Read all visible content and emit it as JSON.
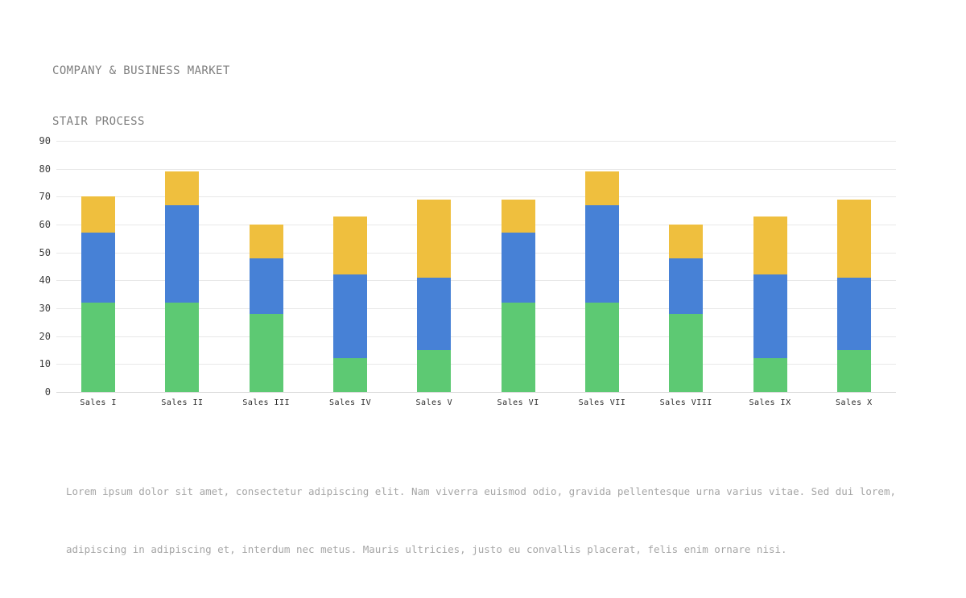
{
  "header": {
    "title_line1": "COMPANY & BUSINESS MARKET",
    "title_line2": "STAIR PROCESS"
  },
  "footer": {
    "description_line1": "Lorem ipsum dolor sit amet, consectetur adipiscing elit. Nam viverra euismod odio, gravida pellentesque urna varius vitae. Sed dui lorem,",
    "description_line2": "adipiscing in adipiscing et, interdum nec metus. Mauris ultricies, justo eu convallis placerat, felis enim ornare nisi."
  },
  "colors": {
    "background": "#ffffff",
    "series-green": "#5dc973",
    "series-blue": "#4781d6",
    "series-yellow": "#efbf3e",
    "grid": "#e8e8e8",
    "zero-line": "#d9d9d9",
    "title-text": "#7e7e7e",
    "axis-text": "#3d3d3d",
    "category-text": "#2a2a2a",
    "description-text": "#a6a6a6"
  },
  "chart_data": {
    "type": "bar",
    "stacked": true,
    "title": "",
    "categories": [
      "Sales I",
      "Sales II",
      "Sales III",
      "Sales IV",
      "Sales V",
      "Sales VI",
      "Sales VII",
      "Sales VIII",
      "Sales IX",
      "Sales X"
    ],
    "series": [
      {
        "name": "bottom-green-segment",
        "color": "#5dc973",
        "values": [
          32,
          32,
          28,
          12,
          15,
          32,
          32,
          28,
          12,
          15
        ]
      },
      {
        "name": "middle-blue-segment",
        "color": "#4781d6",
        "values": [
          25,
          35,
          20,
          30,
          26,
          25,
          35,
          20,
          30,
          26
        ]
      },
      {
        "name": "top-yellow-segment",
        "color": "#efbf3e",
        "values": [
          13,
          12,
          12,
          21,
          28,
          12,
          12,
          12,
          21,
          28
        ]
      }
    ],
    "stack_totals": [
      70,
      79,
      60,
      63,
      69,
      69,
      79,
      60,
      63,
      69
    ],
    "ylim": [
      0,
      90
    ],
    "y_ticks": [
      0,
      10,
      20,
      30,
      40,
      50,
      60,
      70,
      80,
      90
    ],
    "grid": true,
    "legend_position": "none",
    "xlabel": "",
    "ylabel": ""
  }
}
